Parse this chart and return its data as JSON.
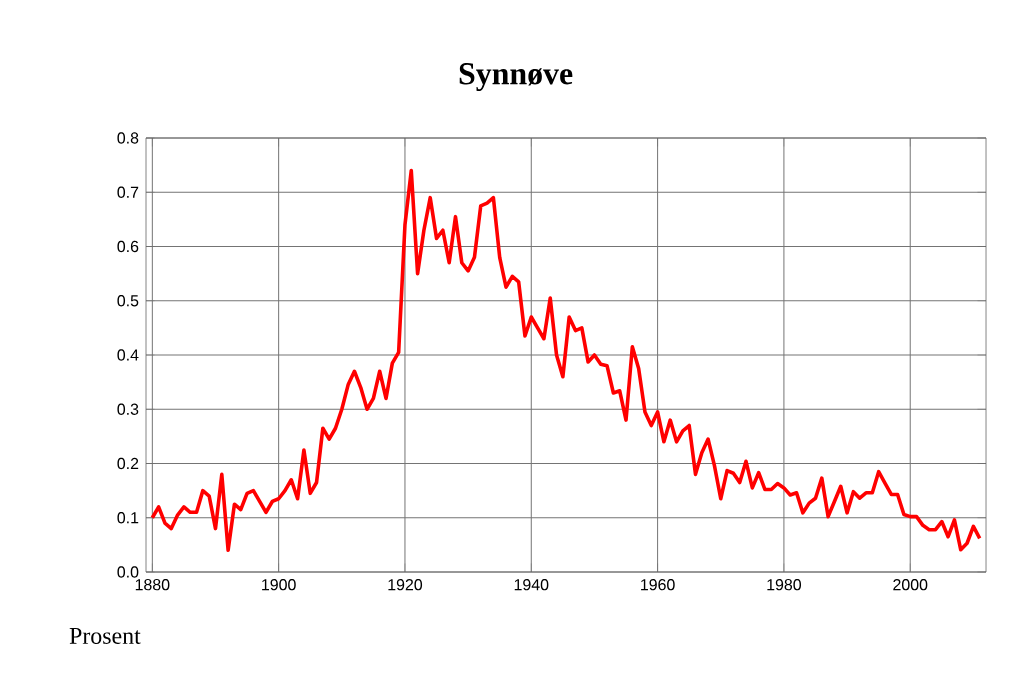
{
  "chart_data": {
    "type": "line",
    "title": "Synnøve",
    "ylabel": "Prosent",
    "x": [
      1880,
      1881,
      1882,
      1883,
      1884,
      1885,
      1886,
      1887,
      1888,
      1889,
      1890,
      1891,
      1892,
      1893,
      1894,
      1895,
      1896,
      1897,
      1898,
      1899,
      1900,
      1901,
      1902,
      1903,
      1904,
      1905,
      1906,
      1907,
      1908,
      1909,
      1910,
      1911,
      1912,
      1913,
      1914,
      1915,
      1916,
      1917,
      1918,
      1919,
      1920,
      1921,
      1922,
      1923,
      1924,
      1925,
      1926,
      1927,
      1928,
      1929,
      1930,
      1931,
      1932,
      1933,
      1934,
      1935,
      1936,
      1937,
      1938,
      1939,
      1940,
      1941,
      1942,
      1943,
      1944,
      1945,
      1946,
      1947,
      1948,
      1949,
      1950,
      1951,
      1952,
      1953,
      1954,
      1955,
      1956,
      1957,
      1958,
      1959,
      1960,
      1961,
      1962,
      1963,
      1964,
      1965,
      1966,
      1967,
      1968,
      1969,
      1970,
      1971,
      1972,
      1973,
      1974,
      1975,
      1976,
      1977,
      1978,
      1979,
      1980,
      1981,
      1982,
      1983,
      1984,
      1985,
      1986,
      1987,
      1988,
      1989,
      1990,
      1991,
      1992,
      1993,
      1994,
      1995,
      1996,
      1997,
      1998,
      1999,
      2000,
      2001,
      2002,
      2003,
      2004,
      2005,
      2006,
      2007,
      2008,
      2009,
      2010,
      2011
    ],
    "series": [
      {
        "color": "#ff0000",
        "values": [
          0.1,
          0.12,
          0.09,
          0.08,
          0.105,
          0.12,
          0.11,
          0.11,
          0.15,
          0.14,
          0.08,
          0.18,
          0.04,
          0.125,
          0.115,
          0.145,
          0.15,
          0.13,
          0.11,
          0.13,
          0.135,
          0.15,
          0.17,
          0.135,
          0.225,
          0.145,
          0.165,
          0.265,
          0.245,
          0.265,
          0.3,
          0.345,
          0.37,
          0.34,
          0.3,
          0.32,
          0.37,
          0.32,
          0.385,
          0.405,
          0.64,
          0.74,
          0.55,
          0.63,
          0.69,
          0.615,
          0.63,
          0.57,
          0.655,
          0.57,
          0.555,
          0.58,
          0.675,
          0.68,
          0.69,
          0.58,
          0.525,
          0.545,
          0.535,
          0.435,
          0.47,
          0.45,
          0.43,
          0.505,
          0.4,
          0.36,
          0.47,
          0.445,
          0.45,
          0.387,
          0.4,
          0.383,
          0.38,
          0.33,
          0.334,
          0.28,
          0.415,
          0.375,
          0.295,
          0.27,
          0.295,
          0.24,
          0.28,
          0.24,
          0.26,
          0.27,
          0.18,
          0.22,
          0.245,
          0.196,
          0.135,
          0.187,
          0.182,
          0.165,
          0.204,
          0.155,
          0.183,
          0.152,
          0.152,
          0.163,
          0.155,
          0.142,
          0.146,
          0.109,
          0.127,
          0.136,
          0.173,
          0.102,
          0.13,
          0.158,
          0.109,
          0.148,
          0.136,
          0.146,
          0.146,
          0.185,
          0.164,
          0.143,
          0.143,
          0.106,
          0.102,
          0.102,
          0.086,
          0.078,
          0.078,
          0.093,
          0.065,
          0.096,
          0.041,
          0.053,
          0.084,
          0.062
        ]
      }
    ],
    "xlim": [
      1879,
      2012
    ],
    "ylim": [
      0,
      0.8
    ],
    "xticks": [
      1880,
      1900,
      1920,
      1940,
      1960,
      1980,
      2000
    ],
    "yticks": [
      {
        "value": 0,
        "label": "0.0"
      },
      0.1,
      0.2,
      0.3,
      0.4,
      0.5,
      0.6,
      0.7,
      0.8
    ],
    "grid": true,
    "line_style": "solid",
    "marker": "none"
  }
}
